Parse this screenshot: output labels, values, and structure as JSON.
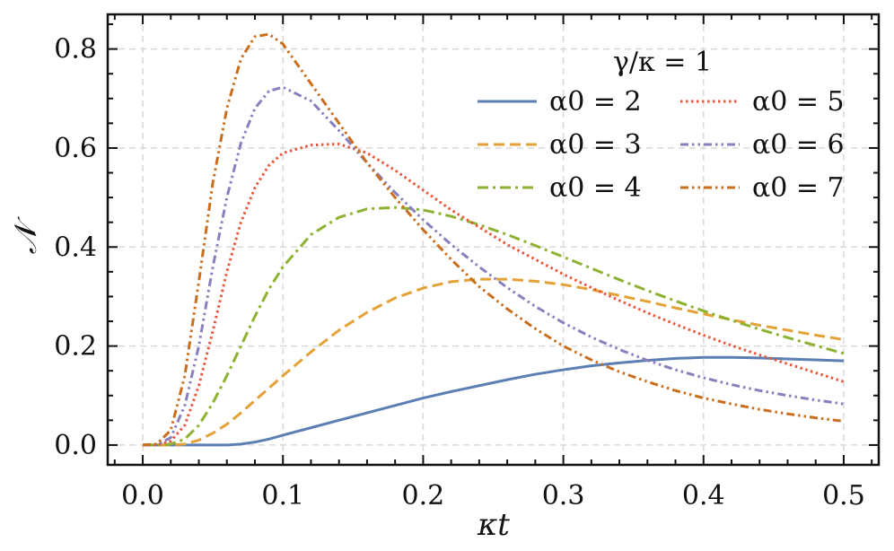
{
  "chart_data": {
    "type": "line",
    "title": "",
    "xlabel": "κt",
    "ylabel": "𝒩",
    "xlim": [
      -0.025,
      0.525
    ],
    "ylim": [
      -0.04,
      0.87
    ],
    "x_ticks": [
      0.0,
      0.1,
      0.2,
      0.3,
      0.4,
      0.5
    ],
    "x_tick_labels": [
      "0.0",
      "0.1",
      "0.2",
      "0.3",
      "0.4",
      "0.5"
    ],
    "y_ticks": [
      0.0,
      0.2,
      0.4,
      0.6,
      0.8
    ],
    "y_tick_labels": [
      "0.0",
      "0.2",
      "0.4",
      "0.6",
      "0.8"
    ],
    "grid": true,
    "legend": {
      "title": "γ/κ = 1",
      "placement": "top-right",
      "columns": 2
    },
    "x": [
      0.0,
      0.01,
      0.02,
      0.03,
      0.04,
      0.05,
      0.06,
      0.07,
      0.08,
      0.09,
      0.1,
      0.12,
      0.14,
      0.16,
      0.18,
      0.2,
      0.22,
      0.24,
      0.26,
      0.28,
      0.3,
      0.32,
      0.34,
      0.36,
      0.38,
      0.4,
      0.42,
      0.44,
      0.46,
      0.48,
      0.5
    ],
    "series": [
      {
        "name": "α0 = 2",
        "color": "#5b7fb4",
        "dash": "solid",
        "values": [
          0.0,
          0.0,
          0.0,
          0.0,
          0.0,
          0.0,
          0.0,
          0.002,
          0.006,
          0.012,
          0.02,
          0.035,
          0.05,
          0.065,
          0.08,
          0.095,
          0.108,
          0.12,
          0.132,
          0.143,
          0.152,
          0.16,
          0.166,
          0.171,
          0.175,
          0.177,
          0.177,
          0.176,
          0.174,
          0.172,
          0.17
        ]
      },
      {
        "name": "α0 = 3",
        "color": "#e3a136",
        "dash": "dashed",
        "values": [
          0.0,
          0.0,
          0.0,
          0.002,
          0.01,
          0.024,
          0.042,
          0.065,
          0.09,
          0.115,
          0.14,
          0.188,
          0.232,
          0.268,
          0.297,
          0.317,
          0.33,
          0.335,
          0.335,
          0.331,
          0.324,
          0.314,
          0.302,
          0.29,
          0.277,
          0.265,
          0.253,
          0.242,
          0.232,
          0.222,
          0.213
        ]
      },
      {
        "name": "α0 = 4",
        "color": "#8db232",
        "dash": "dashdot",
        "values": [
          0.0,
          0.0,
          0.002,
          0.012,
          0.04,
          0.085,
          0.14,
          0.2,
          0.26,
          0.315,
          0.36,
          0.425,
          0.46,
          0.477,
          0.48,
          0.475,
          0.462,
          0.445,
          0.425,
          0.403,
          0.38,
          0.357,
          0.334,
          0.312,
          0.291,
          0.271,
          0.252,
          0.234,
          0.217,
          0.201,
          0.185
        ]
      },
      {
        "name": "α0 = 5",
        "color": "#e8573c",
        "dash": "dotted",
        "values": [
          0.0,
          0.0,
          0.008,
          0.04,
          0.12,
          0.23,
          0.35,
          0.45,
          0.52,
          0.565,
          0.59,
          0.606,
          0.608,
          0.59,
          0.555,
          0.515,
          0.475,
          0.44,
          0.405,
          0.375,
          0.345,
          0.318,
          0.292,
          0.267,
          0.244,
          0.222,
          0.201,
          0.182,
          0.164,
          0.146,
          0.128
        ]
      },
      {
        "name": "α0 = 6",
        "color": "#8a7fbd",
        "dash": "dashdotdot",
        "values": [
          0.0,
          0.0,
          0.015,
          0.08,
          0.2,
          0.36,
          0.5,
          0.61,
          0.68,
          0.715,
          0.723,
          0.695,
          0.635,
          0.57,
          0.51,
          0.455,
          0.405,
          0.36,
          0.318,
          0.28,
          0.247,
          0.218,
          0.193,
          0.171,
          0.152,
          0.136,
          0.122,
          0.11,
          0.1,
          0.091,
          0.083
        ]
      },
      {
        "name": "α0 = 7",
        "color": "#c86e1c",
        "dash": "dashdotdot",
        "values": [
          0.0,
          0.002,
          0.03,
          0.14,
          0.33,
          0.53,
          0.68,
          0.78,
          0.825,
          0.83,
          0.81,
          0.73,
          0.65,
          0.57,
          0.5,
          0.435,
          0.375,
          0.32,
          0.275,
          0.235,
          0.2,
          0.172,
          0.148,
          0.128,
          0.11,
          0.095,
          0.083,
          0.072,
          0.063,
          0.055,
          0.048
        ]
      }
    ]
  }
}
